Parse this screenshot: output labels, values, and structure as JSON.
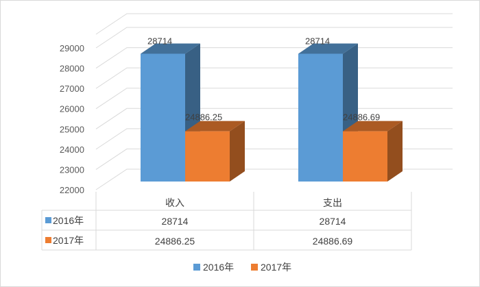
{
  "chart_data": {
    "type": "bar",
    "variant": "3d-clustered-column-with-data-table",
    "categories": [
      "收入",
      "支出"
    ],
    "series": [
      {
        "name": "2016年",
        "values": [
          28714,
          28714
        ],
        "color": "#5b9bd5",
        "labels": [
          "28714",
          "28714"
        ]
      },
      {
        "name": "2017年",
        "values": [
          24886.25,
          24886.69
        ],
        "color": "#ed7d31",
        "labels": [
          "24886.25",
          "24886.69"
        ]
      }
    ],
    "yticks": [
      22000,
      23000,
      24000,
      25000,
      26000,
      27000,
      28000,
      29000
    ],
    "ylim": [
      22000,
      29000
    ],
    "grid": true,
    "legend": "bottom",
    "data_table": {
      "headers": [
        "收入",
        "支出"
      ],
      "rows": [
        {
          "label": "2016年",
          "cells": [
            "28714",
            "28714"
          ]
        },
        {
          "label": "2017年",
          "cells": [
            "24886.25",
            "24886.69"
          ]
        }
      ]
    }
  }
}
